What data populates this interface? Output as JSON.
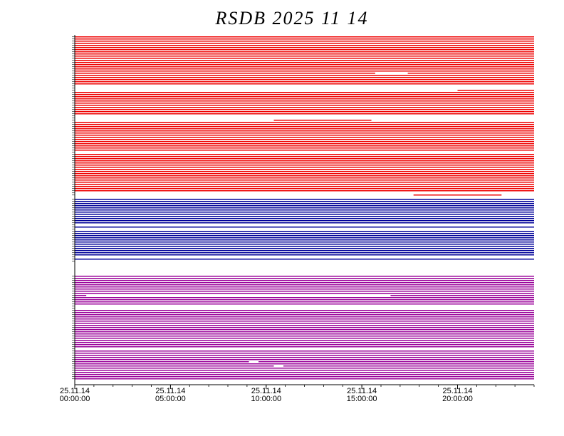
{
  "chart_data": {
    "type": "availability",
    "title": "RSDB  2025  11  14",
    "xlim": [
      0,
      24
    ],
    "xticks": [
      {
        "value": 0,
        "label": [
          "25.11.14",
          "00:00:00"
        ]
      },
      {
        "value": 5,
        "label": [
          "25.11.14",
          "05:00:00"
        ]
      },
      {
        "value": 10,
        "label": [
          "25.11.14",
          "10:00:00"
        ]
      },
      {
        "value": 15,
        "label": [
          "25.11.14",
          "15:00:00"
        ]
      },
      {
        "value": 20,
        "label": [
          "25.11.14",
          "20:00:00"
        ]
      }
    ],
    "groups": [
      {
        "color": "#ee0000",
        "rows": [
          [
            [
              0,
              24
            ]
          ],
          [
            [
              0,
              24
            ]
          ],
          [
            [
              0,
              24
            ]
          ],
          [
            [
              0,
              24
            ]
          ],
          [
            [
              0,
              24
            ]
          ],
          [
            [
              0,
              24
            ]
          ],
          [
            [
              0,
              24
            ]
          ],
          [
            [
              0,
              24
            ]
          ],
          [
            [
              0,
              24
            ]
          ],
          [
            [
              0,
              24
            ]
          ],
          [
            [
              0,
              24
            ]
          ],
          [
            [
              0,
              24
            ]
          ],
          [
            [
              0,
              24
            ]
          ],
          [
            [
              0,
              24
            ]
          ],
          [
            [
              0,
              24
            ]
          ],
          [
            [
              0,
              24
            ]
          ],
          [
            [
              0,
              24
            ]
          ],
          [
            [
              0,
              15.7
            ],
            [
              17.4,
              24
            ]
          ],
          [
            [
              0,
              24
            ]
          ],
          [
            [
              0,
              24
            ]
          ],
          [
            [
              0,
              24
            ]
          ],
          [
            [
              0,
              24
            ]
          ],
          [
            [
              0,
              24
            ]
          ],
          [],
          [],
          [
            [
              20,
              24
            ]
          ],
          [
            [
              0,
              24
            ]
          ],
          [
            [
              0,
              24
            ]
          ],
          [
            [
              0,
              24
            ]
          ],
          [
            [
              0,
              24
            ]
          ],
          [
            [
              0,
              24
            ]
          ],
          [
            [
              0,
              24
            ]
          ],
          [
            [
              0,
              24
            ]
          ],
          [
            [
              0,
              24
            ]
          ],
          [
            [
              0,
              24
            ]
          ],
          [
            [
              0,
              24
            ]
          ],
          [
            [
              0,
              24
            ]
          ],
          [],
          [],
          [
            [
              10.4,
              15.5
            ]
          ],
          [
            [
              0,
              24
            ]
          ],
          [
            [
              0,
              24
            ]
          ],
          [
            [
              0,
              24
            ]
          ],
          [
            [
              0,
              24
            ]
          ],
          [
            [
              0,
              24
            ]
          ],
          [
            [
              0,
              24
            ]
          ],
          [
            [
              0,
              24
            ]
          ],
          [
            [
              0,
              24
            ]
          ],
          [
            [
              0,
              24
            ]
          ],
          [
            [
              0,
              24
            ]
          ],
          [
            [
              0,
              24
            ]
          ],
          [
            [
              0,
              24
            ]
          ],
          [
            [
              0,
              24
            ]
          ],
          [
            [
              0,
              24
            ]
          ],
          [],
          [
            [
              0,
              24
            ]
          ],
          [
            [
              0,
              24
            ]
          ],
          [
            [
              0,
              24
            ]
          ],
          [
            [
              0,
              24
            ]
          ],
          [
            [
              0,
              24
            ]
          ],
          [
            [
              0,
              24
            ]
          ],
          [
            [
              0,
              24
            ]
          ],
          [
            [
              0,
              24
            ]
          ],
          [
            [
              0,
              24
            ]
          ],
          [
            [
              0,
              24
            ]
          ],
          [
            [
              0,
              24
            ]
          ],
          [
            [
              0,
              24
            ]
          ],
          [
            [
              0,
              24
            ]
          ],
          [
            [
              0,
              24
            ]
          ],
          [
            [
              0,
              24
            ]
          ],
          [
            [
              0,
              24
            ]
          ],
          [
            [
              0,
              24
            ]
          ],
          [
            [
              0,
              24
            ]
          ],
          [],
          [
            [
              17.7,
              22.3
            ]
          ]
        ]
      },
      {
        "color": "#000099",
        "rows": [
          [
            [
              0,
              24
            ]
          ],
          [
            [
              0,
              24
            ]
          ],
          [
            [
              0,
              24
            ]
          ],
          [
            [
              0,
              24
            ]
          ],
          [
            [
              0,
              24
            ]
          ],
          [
            [
              0,
              24
            ]
          ],
          [
            [
              0,
              24
            ]
          ],
          [
            [
              0,
              24
            ]
          ],
          [
            [
              0,
              24
            ]
          ],
          [
            [
              0,
              24
            ]
          ],
          [
            [
              0,
              24
            ]
          ],
          [
            [
              0,
              24
            ]
          ],
          [],
          [
            [
              0,
              24
            ]
          ],
          [],
          [
            [
              0,
              24
            ]
          ],
          [
            [
              0,
              24
            ]
          ],
          [
            [
              0,
              24
            ]
          ],
          [
            [
              0,
              24
            ]
          ],
          [
            [
              0,
              24
            ]
          ],
          [
            [
              0,
              24
            ]
          ],
          [
            [
              0,
              24
            ]
          ],
          [
            [
              0,
              24
            ]
          ],
          [
            [
              0,
              24
            ]
          ],
          [
            [
              0,
              24
            ]
          ],
          [
            [
              0,
              24
            ]
          ],
          [
            [
              0,
              24
            ]
          ],
          [],
          [
            [
              0,
              24
            ]
          ],
          []
        ]
      },
      {
        "color": "#990099",
        "rows": [
          [
            [
              0,
              24
            ]
          ],
          [
            [
              0,
              24
            ]
          ],
          [
            [
              0,
              24
            ]
          ],
          [
            [
              0,
              24
            ]
          ],
          [
            [
              0,
              24
            ]
          ],
          [
            [
              0,
              24
            ]
          ],
          [
            [
              0,
              24
            ]
          ],
          [
            [
              0,
              24
            ]
          ],
          [
            [
              0,
              24
            ]
          ],
          [
            [
              0,
              0.6
            ],
            [
              16.5,
              24
            ]
          ],
          [
            [
              0,
              24
            ]
          ],
          [
            [
              0,
              24
            ]
          ],
          [
            [
              0,
              24
            ]
          ],
          [
            [
              0,
              24
            ]
          ],
          [],
          [],
          [
            [
              0,
              24
            ]
          ],
          [
            [
              0,
              24
            ]
          ],
          [
            [
              0,
              24
            ]
          ],
          [
            [
              0,
              24
            ]
          ],
          [
            [
              0,
              24
            ]
          ],
          [
            [
              0,
              24
            ]
          ],
          [
            [
              0,
              24
            ]
          ],
          [
            [
              0,
              24
            ]
          ],
          [
            [
              0,
              24
            ]
          ],
          [
            [
              0,
              24
            ]
          ],
          [
            [
              0,
              24
            ]
          ],
          [
            [
              0,
              24
            ]
          ],
          [
            [
              0,
              24
            ]
          ],
          [
            [
              0,
              24
            ]
          ],
          [
            [
              0,
              24
            ]
          ],
          [
            [
              0,
              24
            ]
          ],
          [
            [
              0,
              24
            ]
          ],
          [
            [
              0,
              24
            ]
          ],
          [],
          [
            [
              0,
              24
            ]
          ],
          [
            [
              0,
              24
            ]
          ],
          [
            [
              0,
              24
            ]
          ],
          [
            [
              0,
              24
            ]
          ],
          [
            [
              0,
              24
            ]
          ],
          [
            [
              0,
              9.1
            ],
            [
              9.6,
              24
            ]
          ],
          [
            [
              0,
              24
            ]
          ],
          [
            [
              0,
              10.4
            ],
            [
              10.9,
              24
            ]
          ],
          [
            [
              0,
              24
            ]
          ],
          [
            [
              0,
              24
            ]
          ],
          [
            [
              0,
              24
            ]
          ],
          [
            [
              0,
              24
            ]
          ],
          [
            [
              0,
              24
            ]
          ],
          [
            [
              0,
              24
            ]
          ]
        ]
      }
    ]
  }
}
